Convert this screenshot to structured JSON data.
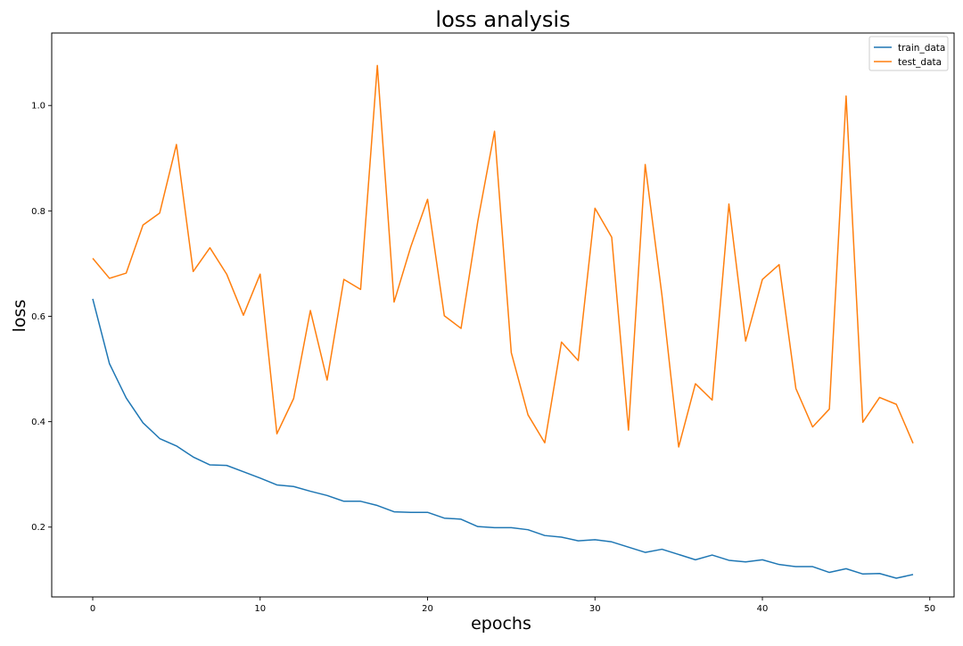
{
  "chart_data": {
    "type": "line",
    "title": "loss analysis",
    "xlabel": "epochs",
    "ylabel": "loss",
    "xlim": [
      -2.45,
      51.45
    ],
    "ylim": [
      0.0675,
      1.1375
    ],
    "x_ticks": [
      0,
      10,
      20,
      30,
      40,
      50
    ],
    "y_ticks": [
      0.2,
      0.4,
      0.6,
      0.8,
      1.0
    ],
    "y_tick_labels": [
      "0.2",
      "0.4",
      "0.6",
      "0.8",
      "1.0"
    ],
    "grid": false,
    "legend": {
      "position": "top-right"
    },
    "x": [
      0,
      1,
      2,
      3,
      4,
      5,
      6,
      7,
      8,
      9,
      10,
      11,
      12,
      13,
      14,
      15,
      16,
      17,
      18,
      19,
      20,
      21,
      22,
      23,
      24,
      25,
      26,
      27,
      28,
      29,
      30,
      31,
      32,
      33,
      34,
      35,
      36,
      37,
      38,
      39,
      40,
      41,
      42,
      43,
      44,
      45,
      46,
      47,
      48,
      49
    ],
    "series": [
      {
        "name": "train_data",
        "color": "#1f77b4",
        "values": [
          0.633,
          0.51,
          0.445,
          0.398,
          0.368,
          0.354,
          0.333,
          0.318,
          0.317,
          0.305,
          0.293,
          0.28,
          0.277,
          0.268,
          0.26,
          0.249,
          0.249,
          0.241,
          0.229,
          0.228,
          0.228,
          0.217,
          0.215,
          0.201,
          0.199,
          0.199,
          0.195,
          0.184,
          0.181,
          0.174,
          0.176,
          0.172,
          0.162,
          0.152,
          0.158,
          0.148,
          0.138,
          0.147,
          0.137,
          0.134,
          0.138,
          0.129,
          0.125,
          0.125,
          0.114,
          0.121,
          0.111,
          0.112,
          0.103,
          0.11
        ]
      },
      {
        "name": "test_data",
        "color": "#ff7f0e",
        "values": [
          0.71,
          0.672,
          0.682,
          0.773,
          0.796,
          0.926,
          0.685,
          0.73,
          0.68,
          0.602,
          0.68,
          0.377,
          0.444,
          0.611,
          0.479,
          0.67,
          0.651,
          1.076,
          0.627,
          0.732,
          0.822,
          0.601,
          0.577,
          0.78,
          0.951,
          0.531,
          0.413,
          0.36,
          0.551,
          0.516,
          0.805,
          0.75,
          0.384,
          0.888,
          0.64,
          0.352,
          0.472,
          0.441,
          0.813,
          0.553,
          0.67,
          0.698,
          0.463,
          0.39,
          0.424,
          1.018,
          0.399,
          0.446,
          0.433,
          0.359
        ]
      }
    ]
  }
}
